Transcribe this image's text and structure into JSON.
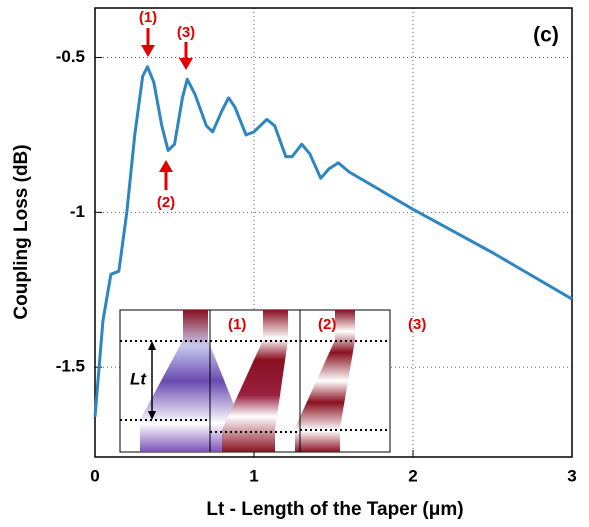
{
  "chart_data": {
    "type": "line",
    "xlabel": "Lt - Length of the Taper (μm)",
    "ylabel": "Coupling Loss (dB)",
    "panel_label": "(c)",
    "annotations": [
      "(1)",
      "(2)",
      "(3)"
    ],
    "inset_labels": [
      "(1)",
      "(2)",
      "(3)"
    ],
    "inset_axis_label": "Lt",
    "xlim": [
      0,
      3
    ],
    "xticks": [
      0,
      1,
      2,
      3
    ],
    "ylim": [
      -1.79,
      -0.34
    ],
    "yticks": [
      -0.5,
      -1,
      -1.5
    ],
    "grid": true,
    "color": "#2e86c1",
    "x": [
      0,
      0.05,
      0.1,
      0.15,
      0.2,
      0.25,
      0.3,
      0.33,
      0.37,
      0.42,
      0.46,
      0.5,
      0.55,
      0.58,
      0.63,
      0.7,
      0.74,
      0.8,
      0.84,
      0.88,
      0.95,
      1.0,
      1.08,
      1.13,
      1.2,
      1.24,
      1.3,
      1.35,
      1.42,
      1.47,
      1.53,
      1.6,
      2.0,
      2.5,
      3.0
    ],
    "values": [
      -1.66,
      -1.35,
      -1.2,
      -1.19,
      -1.0,
      -0.75,
      -0.56,
      -0.53,
      -0.58,
      -0.72,
      -0.8,
      -0.78,
      -0.63,
      -0.57,
      -0.62,
      -0.72,
      -0.74,
      -0.67,
      -0.63,
      -0.66,
      -0.75,
      -0.74,
      -0.7,
      -0.72,
      -0.82,
      -0.82,
      -0.78,
      -0.81,
      -0.89,
      -0.86,
      -0.84,
      -0.87,
      -0.99,
      -1.13,
      -1.28
    ]
  }
}
